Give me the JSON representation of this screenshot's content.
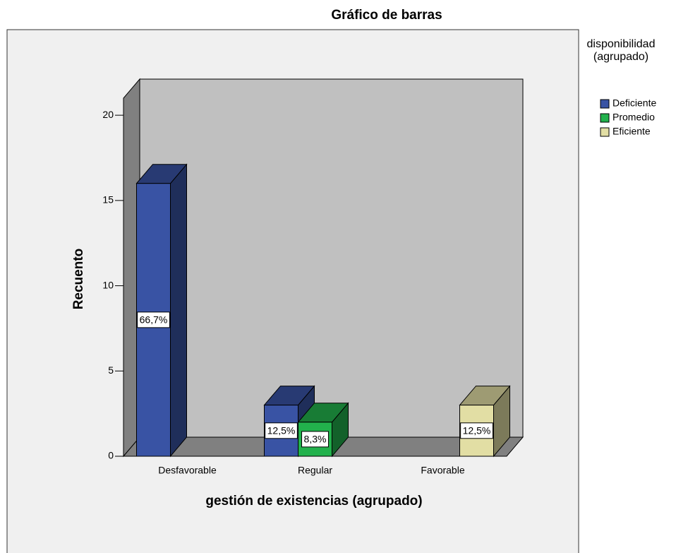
{
  "chart_data": {
    "type": "bar3d",
    "title": "Gráfico de barras",
    "x_label": "gestión de existencias (agrupado)",
    "y_label": "Recuento",
    "legend_title": "disponibilidad (agrupado)",
    "legend_position": "right",
    "categories": [
      "Desfavorable",
      "Regular",
      "Favorable"
    ],
    "series": [
      {
        "name": "Deficiente",
        "color": "#3953a4",
        "values": [
          16,
          3,
          null
        ],
        "data_labels": [
          "66,7%",
          "12,5%",
          null
        ]
      },
      {
        "name": "Promedio",
        "color": "#22b14c",
        "values": [
          null,
          2,
          null
        ],
        "data_labels": [
          null,
          "8,3%",
          null
        ]
      },
      {
        "name": "Eficiente",
        "color": "#e2dea4",
        "values": [
          null,
          null,
          3
        ],
        "data_labels": [
          null,
          null,
          "12,5%"
        ]
      }
    ],
    "ylim": [
      0,
      21
    ],
    "yticks": [
      0,
      5,
      10,
      15,
      20
    ]
  }
}
